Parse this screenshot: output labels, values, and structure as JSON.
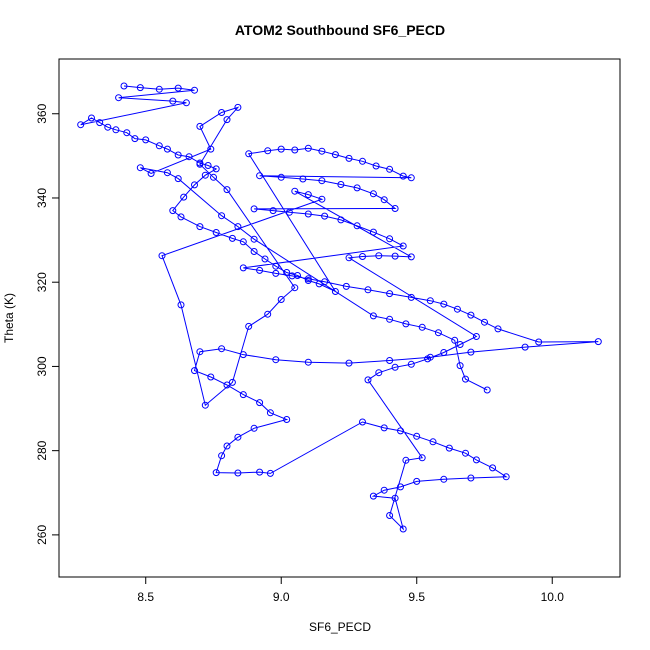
{
  "chart_data": {
    "type": "scatter",
    "title": "ATOM2 Southbound SF6_PECD",
    "xlabel": "SF6_PECD",
    "ylabel": "Theta (K)",
    "xlim": [
      8.18,
      10.25
    ],
    "ylim": [
      250,
      373
    ],
    "x_ticks": [
      8.5,
      9.0,
      9.5,
      10.0
    ],
    "x_tick_labels": [
      "8.5",
      "9.0",
      "9.5",
      "10.0"
    ],
    "y_ticks": [
      260,
      280,
      300,
      320,
      340,
      360
    ],
    "y_tick_labels": [
      "260",
      "280",
      "300",
      "320",
      "340",
      "360"
    ],
    "grid": false,
    "legend": "none",
    "connected": true,
    "marker": "open-circle",
    "color": "#0000ff",
    "series": [
      {
        "values": [
          [
            8.42,
            366.6
          ],
          [
            8.48,
            366.2
          ],
          [
            8.55,
            365.8
          ],
          [
            8.62,
            366.1
          ],
          [
            8.68,
            365.6
          ],
          [
            8.4,
            363.8
          ],
          [
            8.6,
            363.0
          ],
          [
            8.65,
            362.6
          ],
          [
            8.26,
            357.4
          ],
          [
            8.3,
            359.0
          ],
          [
            8.33,
            357.9
          ],
          [
            8.36,
            356.8
          ],
          [
            8.39,
            356.2
          ],
          [
            8.43,
            355.5
          ],
          [
            8.46,
            354.1
          ],
          [
            8.5,
            353.8
          ],
          [
            8.55,
            352.4
          ],
          [
            8.58,
            351.6
          ],
          [
            8.62,
            350.2
          ],
          [
            8.66,
            349.8
          ],
          [
            8.7,
            348.3
          ],
          [
            8.73,
            347.7
          ],
          [
            8.76,
            346.9
          ],
          [
            8.72,
            345.4
          ],
          [
            8.68,
            343.1
          ],
          [
            8.64,
            340.2
          ],
          [
            8.6,
            337.0
          ],
          [
            8.63,
            335.5
          ],
          [
            8.7,
            333.2
          ],
          [
            8.76,
            331.8
          ],
          [
            8.82,
            330.4
          ],
          [
            8.86,
            329.6
          ],
          [
            8.9,
            327.3
          ],
          [
            8.94,
            325.5
          ],
          [
            8.98,
            323.8
          ],
          [
            9.02,
            322.3
          ],
          [
            9.06,
            321.6
          ],
          [
            9.1,
            320.4
          ],
          [
            9.14,
            319.6
          ],
          [
            9.2,
            317.8
          ],
          [
            8.88,
            350.5
          ],
          [
            8.95,
            351.2
          ],
          [
            9.0,
            351.6
          ],
          [
            9.05,
            351.4
          ],
          [
            9.1,
            351.8
          ],
          [
            9.15,
            351.1
          ],
          [
            9.2,
            350.3
          ],
          [
            9.25,
            349.4
          ],
          [
            9.3,
            348.7
          ],
          [
            9.35,
            347.6
          ],
          [
            9.4,
            346.8
          ],
          [
            9.45,
            345.2
          ],
          [
            9.48,
            344.8
          ],
          [
            8.92,
            345.3
          ],
          [
            9.0,
            344.9
          ],
          [
            9.08,
            344.5
          ],
          [
            9.15,
            344.1
          ],
          [
            9.22,
            343.2
          ],
          [
            9.28,
            342.4
          ],
          [
            9.34,
            341.0
          ],
          [
            9.38,
            339.6
          ],
          [
            9.42,
            337.5
          ],
          [
            8.9,
            337.4
          ],
          [
            8.97,
            337.0
          ],
          [
            9.03,
            336.6
          ],
          [
            9.1,
            336.2
          ],
          [
            9.16,
            335.7
          ],
          [
            9.22,
            334.8
          ],
          [
            9.28,
            333.4
          ],
          [
            9.34,
            331.9
          ],
          [
            9.4,
            330.3
          ],
          [
            9.45,
            328.6
          ],
          [
            8.86,
            323.4
          ],
          [
            8.92,
            322.8
          ],
          [
            8.98,
            322.1
          ],
          [
            9.04,
            321.5
          ],
          [
            9.1,
            320.8
          ],
          [
            9.16,
            320.1
          ],
          [
            9.24,
            319.0
          ],
          [
            9.32,
            318.2
          ],
          [
            9.4,
            317.3
          ],
          [
            9.48,
            316.4
          ],
          [
            9.55,
            315.6
          ],
          [
            9.6,
            314.8
          ],
          [
            9.65,
            313.6
          ],
          [
            9.7,
            312.2
          ],
          [
            9.75,
            310.5
          ],
          [
            9.8,
            308.9
          ],
          [
            9.95,
            305.8
          ],
          [
            10.17,
            305.9
          ],
          [
            9.9,
            304.6
          ],
          [
            9.7,
            303.4
          ],
          [
            9.55,
            302.2
          ],
          [
            9.4,
            301.4
          ],
          [
            9.25,
            300.8
          ],
          [
            9.1,
            301.0
          ],
          [
            8.98,
            301.6
          ],
          [
            8.86,
            302.8
          ],
          [
            8.78,
            304.2
          ],
          [
            8.7,
            303.5
          ],
          [
            8.68,
            299.0
          ],
          [
            8.74,
            297.5
          ],
          [
            8.8,
            295.6
          ],
          [
            8.86,
            293.3
          ],
          [
            8.92,
            291.4
          ],
          [
            8.96,
            289.0
          ],
          [
            9.02,
            287.4
          ],
          [
            8.9,
            285.3
          ],
          [
            8.84,
            283.2
          ],
          [
            8.8,
            281.1
          ],
          [
            8.78,
            278.8
          ],
          [
            8.76,
            274.8
          ],
          [
            8.84,
            274.7
          ],
          [
            8.92,
            274.9
          ],
          [
            8.96,
            274.6
          ],
          [
            9.3,
            286.8
          ],
          [
            9.38,
            285.4
          ],
          [
            9.44,
            284.7
          ],
          [
            9.5,
            283.4
          ],
          [
            9.56,
            282.1
          ],
          [
            9.62,
            280.6
          ],
          [
            9.68,
            279.4
          ],
          [
            9.72,
            277.8
          ],
          [
            9.78,
            275.9
          ],
          [
            9.83,
            273.8
          ],
          [
            9.7,
            273.5
          ],
          [
            9.6,
            273.2
          ],
          [
            9.5,
            272.7
          ],
          [
            9.44,
            271.4
          ],
          [
            9.38,
            270.6
          ],
          [
            9.34,
            269.2
          ],
          [
            9.42,
            268.7
          ],
          [
            9.45,
            261.4
          ],
          [
            9.4,
            264.6
          ],
          [
            9.46,
            277.7
          ],
          [
            9.52,
            278.3
          ],
          [
            9.32,
            296.8
          ],
          [
            9.36,
            298.5
          ],
          [
            9.42,
            299.8
          ],
          [
            9.48,
            300.5
          ],
          [
            9.54,
            301.8
          ],
          [
            9.6,
            303.3
          ],
          [
            9.66,
            305.2
          ],
          [
            9.72,
            307.1
          ],
          [
            9.25,
            325.8
          ],
          [
            9.3,
            326.1
          ],
          [
            9.36,
            326.3
          ],
          [
            9.42,
            326.2
          ],
          [
            9.48,
            326.0
          ],
          [
            9.05,
            341.6
          ],
          [
            9.1,
            340.8
          ],
          [
            9.15,
            339.7
          ],
          [
            8.56,
            326.3
          ],
          [
            8.63,
            314.6
          ],
          [
            8.72,
            290.8
          ],
          [
            8.82,
            296.2
          ],
          [
            8.88,
            309.5
          ],
          [
            8.95,
            312.4
          ],
          [
            9.0,
            315.9
          ],
          [
            9.05,
            318.7
          ],
          [
            8.8,
            342.0
          ],
          [
            8.75,
            344.9
          ],
          [
            8.7,
            348.0
          ],
          [
            8.8,
            358.6
          ],
          [
            8.84,
            361.5
          ],
          [
            8.78,
            360.3
          ],
          [
            8.7,
            357.0
          ],
          [
            8.74,
            351.6
          ],
          [
            8.52,
            345.8
          ],
          [
            8.48,
            347.2
          ],
          [
            8.58,
            346.0
          ],
          [
            8.62,
            344.6
          ],
          [
            8.78,
            335.8
          ],
          [
            8.84,
            333.2
          ],
          [
            8.9,
            330.2
          ],
          [
            9.34,
            312.0
          ],
          [
            9.4,
            311.2
          ],
          [
            9.46,
            310.1
          ],
          [
            9.52,
            309.3
          ],
          [
            9.58,
            308.0
          ],
          [
            9.64,
            306.2
          ],
          [
            9.66,
            300.2
          ],
          [
            9.68,
            297.0
          ],
          [
            9.76,
            294.4
          ]
        ]
      }
    ]
  }
}
